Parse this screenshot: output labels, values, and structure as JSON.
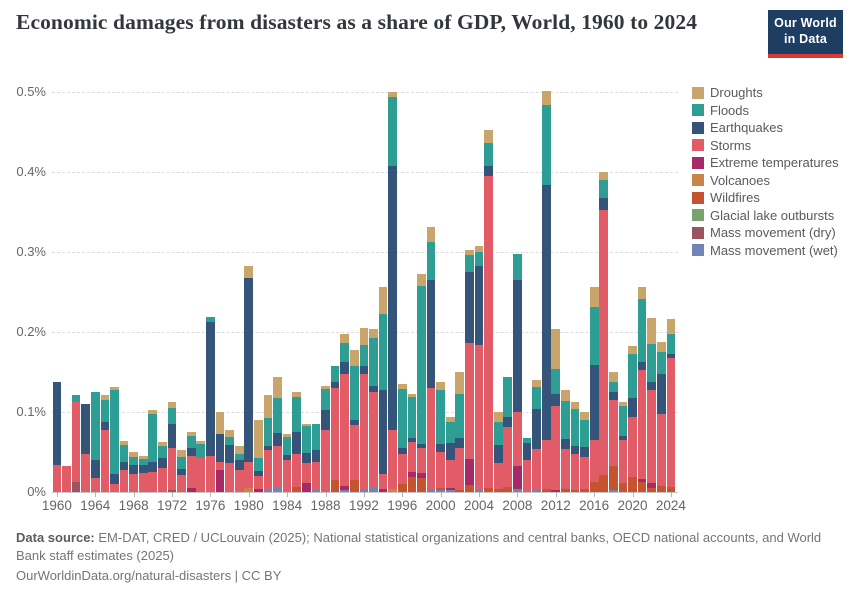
{
  "header": {
    "title": "Economic damages from disasters as a share of GDP, World, 1960 to 2024",
    "logo_line1": "Our World",
    "logo_line2": "in Data",
    "logo_bg": "#1d3d63",
    "logo_accent": "#d93a34"
  },
  "legend": {
    "items": [
      {
        "key": "droughts",
        "label": "Droughts",
        "color": "#C9A46B"
      },
      {
        "key": "floods",
        "label": "Floods",
        "color": "#2E9E94"
      },
      {
        "key": "earthquakes",
        "label": "Earthquakes",
        "color": "#35547A"
      },
      {
        "key": "storms",
        "label": "Storms",
        "color": "#E25C68"
      },
      {
        "key": "extreme",
        "label": "Extreme temperatures",
        "color": "#A62A68"
      },
      {
        "key": "volcanoes",
        "label": "Volcanoes",
        "color": "#C98545"
      },
      {
        "key": "wildfires",
        "label": "Wildfires",
        "color": "#C55330"
      },
      {
        "key": "glacial",
        "label": "Glacial lake outbursts",
        "color": "#79A26E"
      },
      {
        "key": "mass_dry",
        "label": "Mass movement (dry)",
        "color": "#9C5460"
      },
      {
        "key": "mass_wet",
        "label": "Mass movement (wet)",
        "color": "#7185B5"
      }
    ]
  },
  "chart_data": {
    "type": "bar",
    "stacked": true,
    "title": "Economic damages from disasters as a share of GDP, World, 1960 to 2024",
    "ylabel": "",
    "xlabel": "",
    "ylim": [
      0,
      0.5
    ],
    "grid": "dashed-horizontal",
    "legend_position": "right",
    "y_ticks": [
      {
        "value": 0.0,
        "label": "0%"
      },
      {
        "value": 0.1,
        "label": "0.1%"
      },
      {
        "value": 0.2,
        "label": "0.2%"
      },
      {
        "value": 0.3,
        "label": "0.3%"
      },
      {
        "value": 0.4,
        "label": "0.4%"
      },
      {
        "value": 0.5,
        "label": "0.5%"
      }
    ],
    "x_tick_years": [
      1960,
      1964,
      1968,
      1972,
      1976,
      1980,
      1984,
      1988,
      1992,
      1996,
      2000,
      2004,
      2008,
      2012,
      2016,
      2020,
      2024
    ],
    "stack_order_bottom_to_top": [
      "mass_wet",
      "mass_dry",
      "glacial",
      "wildfires",
      "volcanoes",
      "extreme",
      "storms",
      "earthquakes",
      "floods",
      "droughts"
    ],
    "unit": "% of GDP",
    "years": [
      {
        "year": 1960,
        "storms": 0.034,
        "earthquakes": 0.103
      },
      {
        "year": 1961,
        "storms": 0.033
      },
      {
        "year": 1962,
        "mass_dry": 0.012,
        "storms": 0.1,
        "floods": 0.009
      },
      {
        "year": 1963,
        "storms": 0.048,
        "earthquakes": 0.062
      },
      {
        "year": 1964,
        "storms": 0.017,
        "earthquakes": 0.023,
        "floods": 0.085
      },
      {
        "year": 1965,
        "storms": 0.078,
        "earthquakes": 0.01,
        "floods": 0.027,
        "droughts": 0.006
      },
      {
        "year": 1966,
        "storms": 0.01,
        "earthquakes": 0.013,
        "floods": 0.104,
        "droughts": 0.004
      },
      {
        "year": 1967,
        "storms": 0.028,
        "earthquakes": 0.01,
        "floods": 0.021,
        "droughts": 0.005
      },
      {
        "year": 1968,
        "storms": 0.022,
        "earthquakes": 0.012,
        "floods": 0.01,
        "droughts": 0.006
      },
      {
        "year": 1969,
        "storms": 0.024,
        "earthquakes": 0.01,
        "floods": 0.007,
        "droughts": 0.004
      },
      {
        "year": 1970,
        "storms": 0.025,
        "earthquakes": 0.012,
        "floods": 0.06,
        "droughts": 0.005
      },
      {
        "year": 1971,
        "storms": 0.03,
        "earthquakes": 0.012,
        "floods": 0.016,
        "droughts": 0.004
      },
      {
        "year": 1972,
        "mass_dry": 0.003,
        "storms": 0.052,
        "earthquakes": 0.03,
        "floods": 0.02,
        "droughts": 0.007
      },
      {
        "year": 1973,
        "storms": 0.021,
        "earthquakes": 0.008,
        "floods": 0.015,
        "droughts": 0.008
      },
      {
        "year": 1974,
        "extreme": 0.005,
        "storms": 0.04,
        "earthquakes": 0.01,
        "floods": 0.015,
        "droughts": 0.005
      },
      {
        "year": 1975,
        "storms": 0.042,
        "floods": 0.018,
        "droughts": 0.004
      },
      {
        "year": 1976,
        "storms": 0.045,
        "earthquakes": 0.168,
        "floods": 0.006
      },
      {
        "year": 1977,
        "extreme": 0.028,
        "storms": 0.01,
        "earthquakes": 0.035,
        "droughts": 0.027
      },
      {
        "year": 1978,
        "storms": 0.036,
        "earthquakes": 0.023,
        "floods": 0.01,
        "droughts": 0.008
      },
      {
        "year": 1979,
        "storms": 0.028,
        "earthquakes": 0.012,
        "floods": 0.008,
        "droughts": 0.01
      },
      {
        "year": 1980,
        "volcanoes": 0.005,
        "storms": 0.033,
        "earthquakes": 0.23,
        "droughts": 0.015
      },
      {
        "year": 1981,
        "extreme": 0.004,
        "storms": 0.016,
        "earthquakes": 0.006,
        "floods": 0.017,
        "droughts": 0.047
      },
      {
        "year": 1982,
        "mass_wet": 0.004,
        "storms": 0.048,
        "earthquakes": 0.006,
        "floods": 0.035,
        "droughts": 0.028
      },
      {
        "year": 1983,
        "mass_wet": 0.005,
        "storms": 0.052,
        "earthquakes": 0.017,
        "floods": 0.044,
        "droughts": 0.026
      },
      {
        "year": 1984,
        "storms": 0.04,
        "earthquakes": 0.006,
        "floods": 0.023,
        "droughts": 0.004
      },
      {
        "year": 1985,
        "wildfires": 0.006,
        "storms": 0.042,
        "earthquakes": 0.027,
        "floods": 0.044,
        "droughts": 0.006
      },
      {
        "year": 1986,
        "extreme": 0.011,
        "storms": 0.025,
        "earthquakes": 0.013,
        "floods": 0.034,
        "droughts": 0.002
      },
      {
        "year": 1987,
        "mass_wet": 0.004,
        "storms": 0.034,
        "earthquakes": 0.015,
        "floods": 0.032
      },
      {
        "year": 1988,
        "storms": 0.077,
        "earthquakes": 0.025,
        "floods": 0.027,
        "droughts": 0.003
      },
      {
        "year": 1989,
        "wildfires": 0.015,
        "storms": 0.115,
        "earthquakes": 0.008,
        "floods": 0.019
      },
      {
        "year": 1990,
        "mass_wet": 0.003,
        "extreme": 0.004,
        "storms": 0.14,
        "earthquakes": 0.015,
        "floods": 0.024,
        "droughts": 0.012
      },
      {
        "year": 1991,
        "wildfires": 0.015,
        "storms": 0.069,
        "earthquakes": 0.006,
        "floods": 0.068,
        "droughts": 0.02
      },
      {
        "year": 1992,
        "mass_wet": 0.004,
        "storms": 0.143,
        "earthquakes": 0.01,
        "floods": 0.027,
        "droughts": 0.021
      },
      {
        "year": 1993,
        "mass_wet": 0.005,
        "storms": 0.12,
        "earthquakes": 0.007,
        "floods": 0.06,
        "droughts": 0.012
      },
      {
        "year": 1994,
        "extreme": 0.004,
        "storms": 0.018,
        "earthquakes": 0.105,
        "floods": 0.096,
        "droughts": 0.033
      },
      {
        "year": 1995,
        "volcanoes": 0.004,
        "storms": 0.073,
        "earthquakes": 0.331,
        "floods": 0.086,
        "droughts": 0.006
      },
      {
        "year": 1996,
        "wildfires": 0.01,
        "storms": 0.037,
        "earthquakes": 0.008,
        "floods": 0.074,
        "droughts": 0.006
      },
      {
        "year": 1997,
        "wildfires": 0.019,
        "extreme": 0.006,
        "storms": 0.038,
        "earthquakes": 0.005,
        "floods": 0.051,
        "droughts": 0.004
      },
      {
        "year": 1998,
        "wildfires": 0.017,
        "extreme": 0.007,
        "storms": 0.031,
        "earthquakes": 0.005,
        "floods": 0.198,
        "droughts": 0.014
      },
      {
        "year": 1999,
        "mass_wet": 0.004,
        "storms": 0.126,
        "earthquakes": 0.135,
        "floods": 0.048,
        "droughts": 0.018
      },
      {
        "year": 2000,
        "mass_wet": 0.002,
        "wildfires": 0.003,
        "storms": 0.045,
        "earthquakes": 0.01,
        "floods": 0.068,
        "droughts": 0.01
      },
      {
        "year": 2001,
        "mass_wet": 0.002,
        "extreme": 0.003,
        "storms": 0.035,
        "earthquakes": 0.021,
        "floods": 0.027,
        "droughts": 0.006
      },
      {
        "year": 2002,
        "wildfires": 0.003,
        "storms": 0.052,
        "earthquakes": 0.012,
        "floods": 0.055,
        "droughts": 0.028
      },
      {
        "year": 2003,
        "wildfires": 0.009,
        "extreme": 0.032,
        "storms": 0.145,
        "earthquakes": 0.089,
        "floods": 0.021,
        "droughts": 0.007
      },
      {
        "year": 2004,
        "mass_wet": 0.002,
        "storms": 0.182,
        "earthquakes": 0.098,
        "floods": 0.018,
        "droughts": 0.007
      },
      {
        "year": 2005,
        "wildfires": 0.005,
        "storms": 0.39,
        "earthquakes": 0.013,
        "floods": 0.028,
        "droughts": 0.016
      },
      {
        "year": 2006,
        "wildfires": 0.004,
        "storms": 0.032,
        "earthquakes": 0.023,
        "floods": 0.029,
        "droughts": 0.012
      },
      {
        "year": 2007,
        "wildfires": 0.006,
        "storms": 0.075,
        "earthquakes": 0.013,
        "floods": 0.05
      },
      {
        "year": 2008,
        "mass_wet": 0.004,
        "extreme": 0.028,
        "storms": 0.068,
        "earthquakes": 0.165,
        "floods": 0.033
      },
      {
        "year": 2009,
        "storms": 0.04,
        "earthquakes": 0.021,
        "floods": 0.006
      },
      {
        "year": 2010,
        "mass_wet": 0.003,
        "storms": 0.051,
        "earthquakes": 0.05,
        "floods": 0.027,
        "droughts": 0.009
      },
      {
        "year": 2011,
        "wildfires": 0.004,
        "storms": 0.061,
        "earthquakes": 0.319,
        "floods": 0.1,
        "droughts": 0.017
      },
      {
        "year": 2012,
        "extreme": 0.003,
        "storms": 0.105,
        "earthquakes": 0.015,
        "floods": 0.031,
        "droughts": 0.05
      },
      {
        "year": 2013,
        "wildfires": 0.004,
        "storms": 0.05,
        "earthquakes": 0.012,
        "floods": 0.048,
        "droughts": 0.013
      },
      {
        "year": 2014,
        "wildfires": 0.003,
        "storms": 0.045,
        "earthquakes": 0.01,
        "floods": 0.046,
        "droughts": 0.009
      },
      {
        "year": 2015,
        "wildfires": 0.004,
        "storms": 0.04,
        "earthquakes": 0.012,
        "floods": 0.034,
        "droughts": 0.01
      },
      {
        "year": 2016,
        "wildfires": 0.013,
        "storms": 0.052,
        "earthquakes": 0.094,
        "floods": 0.072,
        "droughts": 0.025
      },
      {
        "year": 2017,
        "wildfires": 0.021,
        "storms": 0.331,
        "earthquakes": 0.015,
        "floods": 0.023,
        "droughts": 0.01
      },
      {
        "year": 2018,
        "mass_wet": 0.002,
        "wildfires": 0.03,
        "storms": 0.083,
        "earthquakes": 0.01,
        "floods": 0.013,
        "droughts": 0.012
      },
      {
        "year": 2019,
        "wildfires": 0.011,
        "storms": 0.054,
        "earthquakes": 0.005,
        "floods": 0.037,
        "droughts": 0.006
      },
      {
        "year": 2020,
        "wildfires": 0.019,
        "storms": 0.075,
        "earthquakes": 0.023,
        "floods": 0.056,
        "droughts": 0.01
      },
      {
        "year": 2021,
        "wildfires": 0.013,
        "extreme": 0.003,
        "storms": 0.136,
        "earthquakes": 0.01,
        "floods": 0.079,
        "droughts": 0.015
      },
      {
        "year": 2022,
        "wildfires": 0.005,
        "extreme": 0.006,
        "storms": 0.116,
        "earthquakes": 0.01,
        "floods": 0.048,
        "droughts": 0.033
      },
      {
        "year": 2023,
        "wildfires": 0.007,
        "storms": 0.091,
        "earthquakes": 0.05,
        "floods": 0.027,
        "droughts": 0.013
      },
      {
        "year": 2024,
        "wildfires": 0.006,
        "storms": 0.161,
        "earthquakes": 0.005,
        "floods": 0.025,
        "droughts": 0.019
      }
    ]
  },
  "footer": {
    "source_label": "Data source:",
    "source_text": " EM-DAT, CRED / UCLouvain (2025); National statistical organizations and central banks, OECD national accounts, and World Bank staff estimates (2025)",
    "link_text": "OurWorldinData.org/natural-disasters | CC BY"
  }
}
